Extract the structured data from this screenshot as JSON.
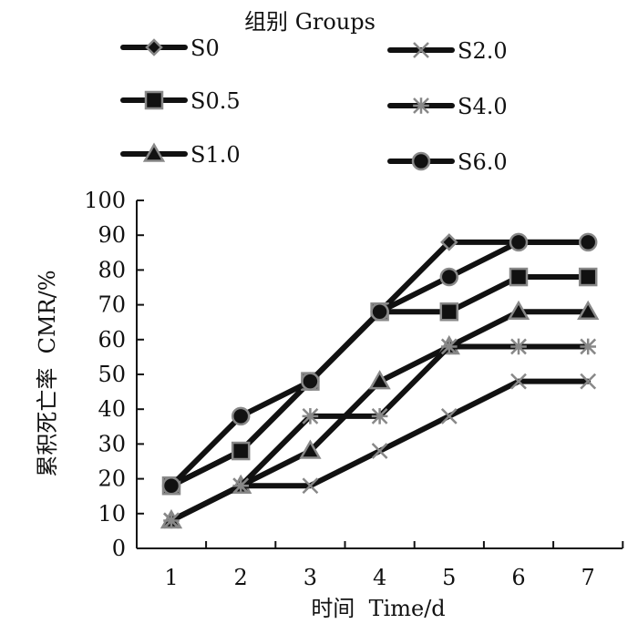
{
  "chart_data": {
    "type": "line",
    "title": "",
    "legend_title": "组别 Groups",
    "legend_position": "top",
    "xlabel": "时间  Time/d",
    "ylabel": "累积死亡率  CMR/%",
    "x": [
      1,
      2,
      3,
      4,
      5,
      6,
      7
    ],
    "xticks": [
      "1",
      "2",
      "3",
      "4",
      "5",
      "6",
      "7"
    ],
    "yticks": [
      "0",
      "10",
      "20",
      "30",
      "40",
      "50",
      "60",
      "70",
      "80",
      "90",
      "100"
    ],
    "ylim": [
      0,
      100
    ],
    "grid": false,
    "series": [
      {
        "name": "S0",
        "marker": "diamond",
        "values": [
          18,
          28,
          48,
          68,
          88,
          88,
          88
        ]
      },
      {
        "name": "S0.5",
        "marker": "square",
        "values": [
          18,
          28,
          48,
          68,
          68,
          78,
          78
        ]
      },
      {
        "name": "S1.0",
        "marker": "triangle",
        "values": [
          8,
          18,
          28,
          48,
          58,
          68,
          68
        ]
      },
      {
        "name": "S2.0",
        "marker": "x",
        "values": [
          8,
          18,
          18,
          28,
          38,
          48,
          48
        ]
      },
      {
        "name": "S4.0",
        "marker": "star",
        "values": [
          8,
          18,
          38,
          38,
          58,
          58,
          58
        ]
      },
      {
        "name": "S6.0",
        "marker": "circle",
        "values": [
          18,
          38,
          48,
          68,
          78,
          88,
          88
        ]
      }
    ],
    "colors": {
      "line": "#111111",
      "marker_fill": "#111111",
      "marker_stroke": "#888888"
    }
  }
}
